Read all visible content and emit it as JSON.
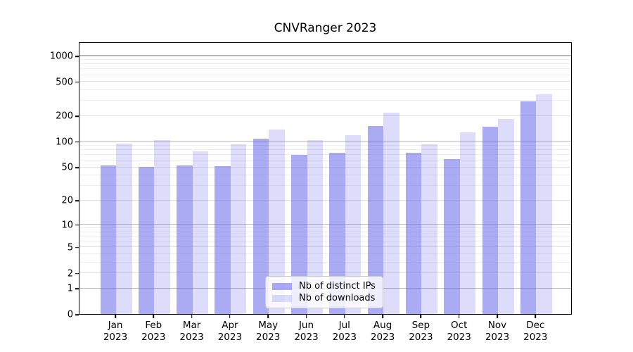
{
  "chart_data": {
    "type": "bar",
    "title": "CNVRanger 2023",
    "categories": [
      "Jan 2023",
      "Feb 2023",
      "Mar 2023",
      "Apr 2023",
      "May 2023",
      "Jun 2023",
      "Jul 2023",
      "Aug 2023",
      "Sep 2023",
      "Oct 2023",
      "Nov 2023",
      "Dec 2023"
    ],
    "series": [
      {
        "name": "Nb of distinct IPs",
        "values": [
          52,
          50,
          52,
          51,
          107,
          69,
          74,
          151,
          74,
          62,
          149,
          296
        ],
        "color": "#6666eb",
        "alpha": 0.55
      },
      {
        "name": "Nb of downloads",
        "values": [
          94,
          104,
          77,
          92,
          139,
          103,
          119,
          218,
          92,
          127,
          182,
          354
        ],
        "color": "#6666eb",
        "alpha": 0.22
      }
    ],
    "yticks": [
      0,
      1,
      2,
      5,
      10,
      20,
      50,
      100,
      200,
      500,
      1000
    ],
    "ylim": [
      0,
      1000
    ],
    "yscale": "log1p",
    "grid": true,
    "grid_major_at": [
      1,
      10,
      100,
      1000
    ],
    "grid_minor_at": [
      2,
      5,
      20,
      50,
      200,
      500
    ],
    "legend_position": "lower-center-inside",
    "xlabel": "",
    "ylabel": ""
  },
  "colors": {
    "background": "#ffffff",
    "axis": "#000000",
    "bar_base": "#6666eb",
    "grid_major": "#b8b8b8",
    "grid_minor": "#dfdfdf",
    "grid_faint": "#eeeeee",
    "legend_border": "#c9c9c9"
  }
}
